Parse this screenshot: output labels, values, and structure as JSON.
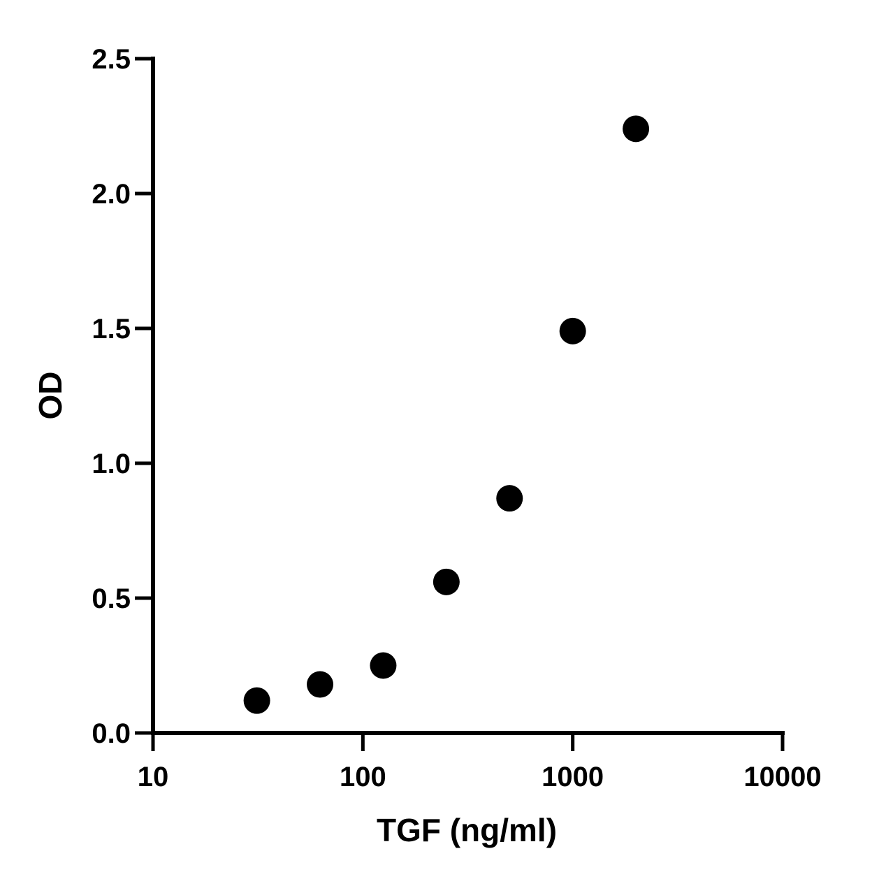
{
  "chart_data": {
    "type": "scatter",
    "xlabel": "TGF (ng/ml)",
    "ylabel": "OD",
    "x_scale": "log",
    "xlim": [
      10,
      10000
    ],
    "ylim": [
      0,
      2.5
    ],
    "x_ticks": [
      10,
      100,
      1000,
      10000
    ],
    "x_tick_labels": [
      "10",
      "100",
      "1000",
      "10000"
    ],
    "y_ticks": [
      0,
      0.5,
      1.0,
      1.5,
      2.0,
      2.5
    ],
    "y_tick_labels": [
      "0.0",
      "0.5",
      "1.0",
      "1.5",
      "2.0",
      "2.5"
    ],
    "grid": false,
    "marker_color": "#000000",
    "points": [
      {
        "x": 31.25,
        "y": 0.12
      },
      {
        "x": 62.5,
        "y": 0.18
      },
      {
        "x": 125,
        "y": 0.25
      },
      {
        "x": 250,
        "y": 0.56
      },
      {
        "x": 500,
        "y": 0.87
      },
      {
        "x": 1000,
        "y": 1.49
      },
      {
        "x": 2000,
        "y": 2.24
      }
    ]
  }
}
